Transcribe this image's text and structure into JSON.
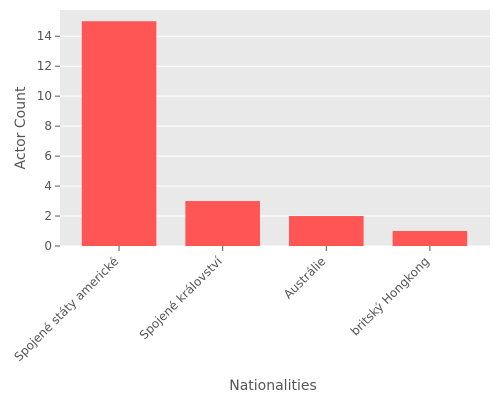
{
  "chart_data": {
    "type": "bar",
    "categories": [
      "Spojené státy americké",
      "Spojené království",
      "Austrálie",
      "britský Hongkong"
    ],
    "values": [
      15,
      3,
      2,
      1
    ],
    "xlabel": "Nationalities",
    "ylabel": "Actor Count",
    "ylim": [
      0,
      15.75
    ],
    "yticks": [
      0,
      2,
      4,
      6,
      8,
      10,
      12,
      14
    ],
    "grid": true,
    "legend": "none",
    "bar_color": "#ff5555",
    "background_color": "#e9e9e9",
    "grid_color": "#ffffff"
  }
}
